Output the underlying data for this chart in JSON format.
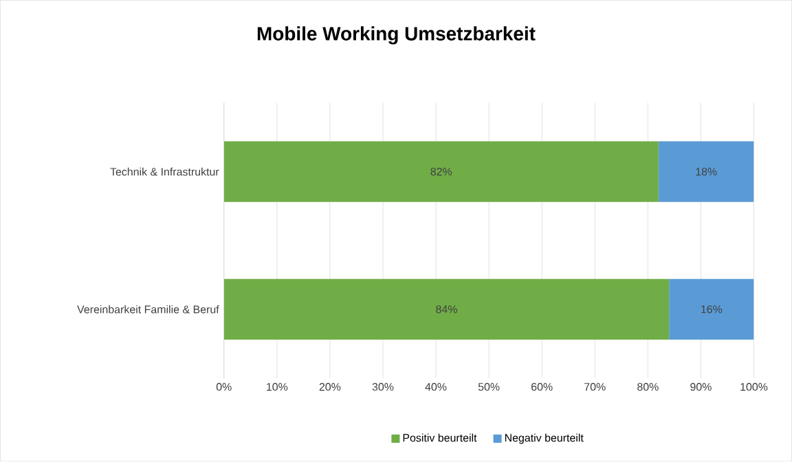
{
  "chart_data": {
    "type": "bar",
    "title": "Mobile Working Umsetzbarkeit",
    "orientation": "horizontal",
    "stacked": true,
    "categories": [
      "Technik & Infrastruktur",
      "Vereinbarkeit Familie & Beruf"
    ],
    "series": [
      {
        "name": "Positiv beurteilt",
        "color": "#70ad47",
        "values": [
          82,
          84
        ],
        "value_labels": [
          "82%",
          "84%"
        ]
      },
      {
        "name": "Negativ beurteilt",
        "color": "#5b9bd5",
        "values": [
          18,
          16
        ],
        "value_labels": [
          "18%",
          "16%"
        ]
      }
    ],
    "xlim": [
      0,
      100
    ],
    "xticks": [
      {
        "value": 0,
        "label": "0%"
      },
      {
        "value": 10,
        "label": "10%"
      },
      {
        "value": 20,
        "label": "20%"
      },
      {
        "value": 30,
        "label": "30%"
      },
      {
        "value": 40,
        "label": "40%"
      },
      {
        "value": 50,
        "label": "50%"
      },
      {
        "value": 60,
        "label": "60%"
      },
      {
        "value": 70,
        "label": "70%"
      },
      {
        "value": 80,
        "label": "80%"
      },
      {
        "value": 90,
        "label": "90%"
      },
      {
        "value": 100,
        "label": "100%"
      }
    ],
    "grid": "x",
    "legend": "bottom"
  }
}
